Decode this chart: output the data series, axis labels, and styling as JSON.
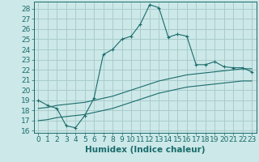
{
  "title": "",
  "xlabel": "Humidex (Indice chaleur)",
  "background_color": "#cce8e8",
  "grid_color": "#aacccc",
  "line_color": "#1a6b6b",
  "marker_color": "#1a6b6b",
  "xlim": [
    -0.5,
    23.5
  ],
  "ylim": [
    15.8,
    28.7
  ],
  "xticks": [
    0,
    1,
    2,
    3,
    4,
    5,
    6,
    7,
    8,
    9,
    10,
    11,
    12,
    13,
    14,
    15,
    16,
    17,
    18,
    19,
    20,
    21,
    22,
    23
  ],
  "yticks": [
    16,
    17,
    18,
    19,
    20,
    21,
    22,
    23,
    24,
    25,
    26,
    27,
    28
  ],
  "curve1_x": [
    0,
    1,
    2,
    3,
    4,
    5,
    6,
    7,
    8,
    9,
    10,
    11,
    12,
    13,
    14,
    15,
    16,
    17,
    18,
    19,
    20,
    21,
    22,
    23
  ],
  "curve1_y": [
    19.0,
    18.5,
    18.2,
    16.5,
    16.3,
    17.5,
    19.2,
    23.5,
    24.0,
    25.0,
    25.3,
    26.5,
    28.4,
    28.1,
    25.2,
    25.5,
    25.3,
    22.5,
    22.5,
    22.8,
    22.3,
    22.2,
    22.2,
    21.8
  ],
  "curve2_x": [
    0,
    1,
    2,
    3,
    4,
    5,
    6,
    7,
    8,
    9,
    10,
    11,
    12,
    13,
    14,
    15,
    16,
    17,
    18,
    19,
    20,
    21,
    22,
    23
  ],
  "curve2_y": [
    18.2,
    18.3,
    18.5,
    18.6,
    18.7,
    18.8,
    19.0,
    19.2,
    19.4,
    19.7,
    20.0,
    20.3,
    20.6,
    20.9,
    21.1,
    21.3,
    21.5,
    21.6,
    21.7,
    21.8,
    21.9,
    22.0,
    22.1,
    22.1
  ],
  "curve3_x": [
    0,
    1,
    2,
    3,
    4,
    5,
    6,
    7,
    8,
    9,
    10,
    11,
    12,
    13,
    14,
    15,
    16,
    17,
    18,
    19,
    20,
    21,
    22,
    23
  ],
  "curve3_y": [
    17.0,
    17.1,
    17.3,
    17.4,
    17.5,
    17.6,
    17.8,
    18.0,
    18.2,
    18.5,
    18.8,
    19.1,
    19.4,
    19.7,
    19.9,
    20.1,
    20.3,
    20.4,
    20.5,
    20.6,
    20.7,
    20.8,
    20.9,
    20.9
  ],
  "font_color": "#1a6b6b",
  "font_size": 6.5,
  "xlabel_fontsize": 7.5
}
